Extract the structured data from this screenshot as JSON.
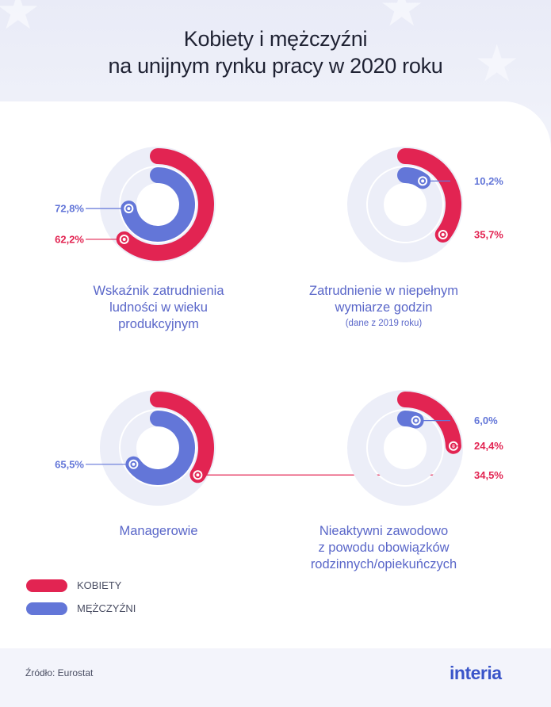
{
  "header": {
    "title_line1": "Kobiety i mężczyźni",
    "title_line2": "na unijnym rynku pracy w 2020 roku"
  },
  "colors": {
    "women": "#e22452",
    "men": "#6376d8",
    "track": "#eceef8"
  },
  "chart_data": [
    {
      "type": "radial-bar",
      "caption_lines": [
        "Wskaźnik zatrudnienia",
        "ludności w wieku",
        "produkcyjnym"
      ],
      "note": "",
      "series": [
        {
          "name": "KOBIETY",
          "value": 62.2,
          "label": "62,2%"
        },
        {
          "name": "MĘŻCZYŹNI",
          "value": 72.8,
          "label": "72,8%"
        }
      ]
    },
    {
      "type": "radial-bar",
      "caption_lines": [
        "Zatrudnienie w niepełnym",
        "wymiarze godzin"
      ],
      "note": "(dane z 2019 roku)",
      "series": [
        {
          "name": "KOBIETY",
          "value": 35.7,
          "label": "35,7%"
        },
        {
          "name": "MĘŻCZYŹNI",
          "value": 10.2,
          "label": "10,2%"
        }
      ]
    },
    {
      "type": "radial-bar",
      "caption_lines": [
        "Managerowie"
      ],
      "note": "",
      "series": [
        {
          "name": "KOBIETY",
          "value": 34.5,
          "label": "34,5%"
        },
        {
          "name": "MĘŻCZYŹNI",
          "value": 65.5,
          "label": "65,5%"
        }
      ]
    },
    {
      "type": "radial-bar",
      "caption_lines": [
        "Nieaktywni zawodowo",
        "z powodu obowiązków",
        "rodzinnych/opiekuńczych"
      ],
      "note": "",
      "series": [
        {
          "name": "KOBIETY",
          "value": 24.4,
          "label": "24,4%"
        },
        {
          "name": "MĘŻCZYŹNI",
          "value": 6.0,
          "label": "6,0%"
        }
      ]
    }
  ],
  "legend": [
    {
      "label": "KOBIETY",
      "color": "#e22452"
    },
    {
      "label": "MĘŻCZYŹNI",
      "color": "#6376d8"
    }
  ],
  "footer": {
    "source": "Źródło: Eurostat",
    "brand": "interia"
  }
}
